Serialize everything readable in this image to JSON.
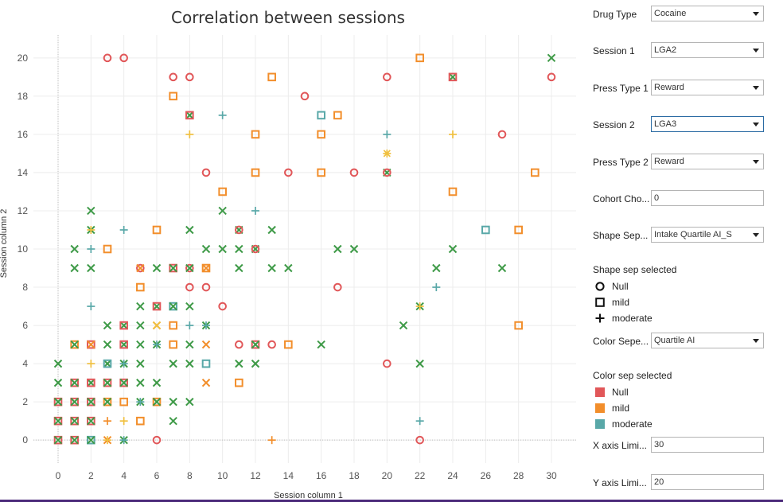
{
  "colors": {
    "Null": "#e15759",
    "mild": "#f28e2b",
    "moderate": "#59a8a8",
    "cross": "#3e9a47",
    "star": "#f0c040"
  },
  "controls": [
    {
      "label": "Drug Type",
      "value": "Cocaine",
      "dropdown": true
    },
    {
      "label": "Session 1",
      "value": "LGA2",
      "dropdown": true
    },
    {
      "label": "Press Type 1",
      "value": "Reward",
      "dropdown": true
    },
    {
      "label": "Session 2",
      "value": "LGA3",
      "dropdown": true,
      "active": true
    },
    {
      "label": "Press Type 2",
      "value": "Reward",
      "dropdown": true
    },
    {
      "label": "Cohort Cho...",
      "value": "0",
      "dropdown": false
    },
    {
      "label": "Shape Sep...",
      "value": "Intake Quartile AI_S",
      "dropdown": true
    }
  ],
  "shape_legend": {
    "title": "Shape sep selected",
    "items": [
      {
        "label": "Null",
        "icon": "circle-icon"
      },
      {
        "label": "mild",
        "icon": "square-icon"
      },
      {
        "label": "moderate",
        "icon": "plus-icon"
      }
    ]
  },
  "color_control": {
    "label": "Color Sepe...",
    "value": "Quartile AI"
  },
  "color_legend": {
    "title": "Color sep selected",
    "items": [
      "Null",
      "mild",
      "moderate"
    ]
  },
  "limits": [
    {
      "label": "X axis Limi...",
      "value": "30"
    },
    {
      "label": "Y axis Limi...",
      "value": "20"
    }
  ],
  "chart_data": {
    "type": "scatter",
    "title": "Correlation between sessions",
    "xlabel": "Session column 1",
    "ylabel": "Session column 2",
    "xlim": [
      -1.5,
      31.5
    ],
    "ylim": [
      -1.2,
      21.2
    ],
    "x_ticks": [
      0,
      2,
      4,
      6,
      8,
      10,
      12,
      14,
      16,
      18,
      20,
      22,
      24,
      26,
      28,
      30
    ],
    "y_ticks": [
      0,
      2,
      4,
      6,
      8,
      10,
      12,
      14,
      16,
      18,
      20
    ],
    "points": [
      {
        "x": 3,
        "y": 20,
        "s": "o",
        "c": "Null"
      },
      {
        "x": 4,
        "y": 20,
        "s": "o",
        "c": "Null"
      },
      {
        "x": 22,
        "y": 20,
        "s": "sq",
        "c": "mild"
      },
      {
        "x": 30,
        "y": 20,
        "s": "x",
        "c": "cross"
      },
      {
        "x": 7,
        "y": 19,
        "s": "o",
        "c": "Null"
      },
      {
        "x": 8,
        "y": 19,
        "s": "o",
        "c": "Null"
      },
      {
        "x": 13,
        "y": 19,
        "s": "sq",
        "c": "mild"
      },
      {
        "x": 20,
        "y": 19,
        "s": "o",
        "c": "Null"
      },
      {
        "x": 24,
        "y": 19,
        "s": "x",
        "c": "cross"
      },
      {
        "x": 24,
        "y": 19,
        "s": "sq",
        "c": "Null"
      },
      {
        "x": 30,
        "y": 19,
        "s": "o",
        "c": "Null"
      },
      {
        "x": 7,
        "y": 18,
        "s": "sq",
        "c": "mild"
      },
      {
        "x": 15,
        "y": 18,
        "s": "o",
        "c": "Null"
      },
      {
        "x": 8,
        "y": 17,
        "s": "x",
        "c": "cross"
      },
      {
        "x": 8,
        "y": 17,
        "s": "sq",
        "c": "Null"
      },
      {
        "x": 10,
        "y": 17,
        "s": "+",
        "c": "moderate"
      },
      {
        "x": 16,
        "y": 17,
        "s": "sq",
        "c": "moderate"
      },
      {
        "x": 17,
        "y": 17,
        "s": "sq",
        "c": "mild"
      },
      {
        "x": 8,
        "y": 16,
        "s": "+",
        "c": "star"
      },
      {
        "x": 12,
        "y": 16,
        "s": "sq",
        "c": "mild"
      },
      {
        "x": 16,
        "y": 16,
        "s": "sq",
        "c": "mild"
      },
      {
        "x": 20,
        "y": 16,
        "s": "+",
        "c": "moderate"
      },
      {
        "x": 24,
        "y": 16,
        "s": "+",
        "c": "star"
      },
      {
        "x": 27,
        "y": 16,
        "s": "o",
        "c": "Null"
      },
      {
        "x": 20,
        "y": 15,
        "s": "*",
        "c": "star"
      },
      {
        "x": 9,
        "y": 14,
        "s": "o",
        "c": "Null"
      },
      {
        "x": 12,
        "y": 14,
        "s": "sq",
        "c": "mild"
      },
      {
        "x": 14,
        "y": 14,
        "s": "o",
        "c": "Null"
      },
      {
        "x": 16,
        "y": 14,
        "s": "sq",
        "c": "mild"
      },
      {
        "x": 18,
        "y": 14,
        "s": "o",
        "c": "Null"
      },
      {
        "x": 20,
        "y": 14,
        "s": "x",
        "c": "cross"
      },
      {
        "x": 20,
        "y": 14,
        "s": "o",
        "c": "Null"
      },
      {
        "x": 29,
        "y": 14,
        "s": "sq",
        "c": "mild"
      },
      {
        "x": 10,
        "y": 13,
        "s": "sq",
        "c": "mild"
      },
      {
        "x": 24,
        "y": 13,
        "s": "sq",
        "c": "mild"
      },
      {
        "x": 2,
        "y": 12,
        "s": "x",
        "c": "cross"
      },
      {
        "x": 10,
        "y": 12,
        "s": "x",
        "c": "cross"
      },
      {
        "x": 12,
        "y": 12,
        "s": "+",
        "c": "moderate"
      },
      {
        "x": 2,
        "y": 11,
        "s": "x",
        "c": "cross"
      },
      {
        "x": 2,
        "y": 11,
        "s": "+",
        "c": "star"
      },
      {
        "x": 4,
        "y": 11,
        "s": "+",
        "c": "moderate"
      },
      {
        "x": 6,
        "y": 11,
        "s": "sq",
        "c": "mild"
      },
      {
        "x": 8,
        "y": 11,
        "s": "x",
        "c": "cross"
      },
      {
        "x": 11,
        "y": 11,
        "s": "x",
        "c": "cross"
      },
      {
        "x": 11,
        "y": 11,
        "s": "o",
        "c": "Null"
      },
      {
        "x": 13,
        "y": 11,
        "s": "x",
        "c": "cross"
      },
      {
        "x": 26,
        "y": 11,
        "s": "sq",
        "c": "moderate"
      },
      {
        "x": 28,
        "y": 11,
        "s": "sq",
        "c": "mild"
      },
      {
        "x": 1,
        "y": 10,
        "s": "x",
        "c": "cross"
      },
      {
        "x": 2,
        "y": 10,
        "s": "+",
        "c": "moderate"
      },
      {
        "x": 3,
        "y": 10,
        "s": "sq",
        "c": "mild"
      },
      {
        "x": 9,
        "y": 10,
        "s": "x",
        "c": "cross"
      },
      {
        "x": 10,
        "y": 10,
        "s": "x",
        "c": "cross"
      },
      {
        "x": 11,
        "y": 10,
        "s": "x",
        "c": "cross"
      },
      {
        "x": 12,
        "y": 10,
        "s": "x",
        "c": "cross"
      },
      {
        "x": 12,
        "y": 10,
        "s": "o",
        "c": "Null"
      },
      {
        "x": 17,
        "y": 10,
        "s": "x",
        "c": "cross"
      },
      {
        "x": 18,
        "y": 10,
        "s": "x",
        "c": "cross"
      },
      {
        "x": 24,
        "y": 10,
        "s": "x",
        "c": "cross"
      },
      {
        "x": 1,
        "y": 9,
        "s": "x",
        "c": "cross"
      },
      {
        "x": 2,
        "y": 9,
        "s": "x",
        "c": "cross"
      },
      {
        "x": 5,
        "y": 9,
        "s": "o",
        "c": "Null"
      },
      {
        "x": 5,
        "y": 9,
        "s": "x",
        "c": "mild"
      },
      {
        "x": 6,
        "y": 9,
        "s": "x",
        "c": "cross"
      },
      {
        "x": 7,
        "y": 9,
        "s": "sq",
        "c": "Null"
      },
      {
        "x": 7,
        "y": 9,
        "s": "x",
        "c": "cross"
      },
      {
        "x": 8,
        "y": 9,
        "s": "o",
        "c": "Null"
      },
      {
        "x": 8,
        "y": 9,
        "s": "x",
        "c": "cross"
      },
      {
        "x": 9,
        "y": 9,
        "s": "sq",
        "c": "mild"
      },
      {
        "x": 9,
        "y": 9,
        "s": "x",
        "c": "mild"
      },
      {
        "x": 11,
        "y": 9,
        "s": "x",
        "c": "cross"
      },
      {
        "x": 13,
        "y": 9,
        "s": "x",
        "c": "cross"
      },
      {
        "x": 14,
        "y": 9,
        "s": "x",
        "c": "cross"
      },
      {
        "x": 23,
        "y": 9,
        "s": "x",
        "c": "cross"
      },
      {
        "x": 27,
        "y": 9,
        "s": "x",
        "c": "cross"
      },
      {
        "x": 5,
        "y": 8,
        "s": "sq",
        "c": "mild"
      },
      {
        "x": 8,
        "y": 8,
        "s": "o",
        "c": "Null"
      },
      {
        "x": 9,
        "y": 8,
        "s": "o",
        "c": "Null"
      },
      {
        "x": 17,
        "y": 8,
        "s": "o",
        "c": "Null"
      },
      {
        "x": 23,
        "y": 8,
        "s": "+",
        "c": "moderate"
      },
      {
        "x": 2,
        "y": 7,
        "s": "+",
        "c": "moderate"
      },
      {
        "x": 5,
        "y": 7,
        "s": "x",
        "c": "cross"
      },
      {
        "x": 6,
        "y": 7,
        "s": "x",
        "c": "cross"
      },
      {
        "x": 6,
        "y": 7,
        "s": "sq",
        "c": "Null"
      },
      {
        "x": 7,
        "y": 7,
        "s": "sq",
        "c": "moderate"
      },
      {
        "x": 7,
        "y": 7,
        "s": "x",
        "c": "cross"
      },
      {
        "x": 8,
        "y": 7,
        "s": "x",
        "c": "cross"
      },
      {
        "x": 10,
        "y": 7,
        "s": "o",
        "c": "Null"
      },
      {
        "x": 22,
        "y": 7,
        "s": "x",
        "c": "cross"
      },
      {
        "x": 22,
        "y": 7,
        "s": "+",
        "c": "star"
      },
      {
        "x": 3,
        "y": 6,
        "s": "x",
        "c": "cross"
      },
      {
        "x": 4,
        "y": 6,
        "s": "x",
        "c": "cross"
      },
      {
        "x": 4,
        "y": 6,
        "s": "sq",
        "c": "Null"
      },
      {
        "x": 5,
        "y": 6,
        "s": "x",
        "c": "cross"
      },
      {
        "x": 6,
        "y": 6,
        "s": "x",
        "c": "mild"
      },
      {
        "x": 6,
        "y": 6,
        "s": "x",
        "c": "star"
      },
      {
        "x": 7,
        "y": 6,
        "s": "sq",
        "c": "mild"
      },
      {
        "x": 8,
        "y": 6,
        "s": "+",
        "c": "moderate"
      },
      {
        "x": 9,
        "y": 6,
        "s": "x",
        "c": "cross"
      },
      {
        "x": 9,
        "y": 6,
        "s": "+",
        "c": "moderate"
      },
      {
        "x": 21,
        "y": 6,
        "s": "x",
        "c": "cross"
      },
      {
        "x": 28,
        "y": 6,
        "s": "sq",
        "c": "mild"
      },
      {
        "x": 1,
        "y": 5,
        "s": "sq",
        "c": "mild"
      },
      {
        "x": 1,
        "y": 5,
        "s": "x",
        "c": "cross"
      },
      {
        "x": 2,
        "y": 5,
        "s": "sq",
        "c": "Null"
      },
      {
        "x": 2,
        "y": 5,
        "s": "x",
        "c": "mild"
      },
      {
        "x": 3,
        "y": 5,
        "s": "x",
        "c": "cross"
      },
      {
        "x": 4,
        "y": 5,
        "s": "x",
        "c": "cross"
      },
      {
        "x": 4,
        "y": 5,
        "s": "sq",
        "c": "Null"
      },
      {
        "x": 5,
        "y": 5,
        "s": "x",
        "c": "cross"
      },
      {
        "x": 6,
        "y": 5,
        "s": "x",
        "c": "cross"
      },
      {
        "x": 6,
        "y": 5,
        "s": "+",
        "c": "moderate"
      },
      {
        "x": 7,
        "y": 5,
        "s": "sq",
        "c": "mild"
      },
      {
        "x": 8,
        "y": 5,
        "s": "x",
        "c": "cross"
      },
      {
        "x": 9,
        "y": 5,
        "s": "x",
        "c": "mild"
      },
      {
        "x": 11,
        "y": 5,
        "s": "o",
        "c": "Null"
      },
      {
        "x": 12,
        "y": 5,
        "s": "sq",
        "c": "Null"
      },
      {
        "x": 12,
        "y": 5,
        "s": "x",
        "c": "cross"
      },
      {
        "x": 13,
        "y": 5,
        "s": "o",
        "c": "Null"
      },
      {
        "x": 14,
        "y": 5,
        "s": "sq",
        "c": "mild"
      },
      {
        "x": 16,
        "y": 5,
        "s": "x",
        "c": "cross"
      },
      {
        "x": 0,
        "y": 4,
        "s": "x",
        "c": "cross"
      },
      {
        "x": 2,
        "y": 4,
        "s": "+",
        "c": "star"
      },
      {
        "x": 3,
        "y": 4,
        "s": "x",
        "c": "cross"
      },
      {
        "x": 3,
        "y": 4,
        "s": "sq",
        "c": "moderate"
      },
      {
        "x": 4,
        "y": 4,
        "s": "x",
        "c": "cross"
      },
      {
        "x": 4,
        "y": 4,
        "s": "+",
        "c": "moderate"
      },
      {
        "x": 5,
        "y": 4,
        "s": "x",
        "c": "cross"
      },
      {
        "x": 7,
        "y": 4,
        "s": "x",
        "c": "cross"
      },
      {
        "x": 8,
        "y": 4,
        "s": "x",
        "c": "cross"
      },
      {
        "x": 9,
        "y": 4,
        "s": "sq",
        "c": "moderate"
      },
      {
        "x": 11,
        "y": 4,
        "s": "x",
        "c": "cross"
      },
      {
        "x": 12,
        "y": 4,
        "s": "x",
        "c": "cross"
      },
      {
        "x": 20,
        "y": 4,
        "s": "o",
        "c": "Null"
      },
      {
        "x": 22,
        "y": 4,
        "s": "x",
        "c": "cross"
      },
      {
        "x": 0,
        "y": 3,
        "s": "x",
        "c": "cross"
      },
      {
        "x": 1,
        "y": 3,
        "s": "sq",
        "c": "Null"
      },
      {
        "x": 1,
        "y": 3,
        "s": "x",
        "c": "cross"
      },
      {
        "x": 2,
        "y": 3,
        "s": "x",
        "c": "cross"
      },
      {
        "x": 2,
        "y": 3,
        "s": "sq",
        "c": "Null"
      },
      {
        "x": 3,
        "y": 3,
        "s": "sq",
        "c": "Null"
      },
      {
        "x": 3,
        "y": 3,
        "s": "x",
        "c": "cross"
      },
      {
        "x": 4,
        "y": 3,
        "s": "sq",
        "c": "Null"
      },
      {
        "x": 4,
        "y": 3,
        "s": "x",
        "c": "cross"
      },
      {
        "x": 5,
        "y": 3,
        "s": "x",
        "c": "cross"
      },
      {
        "x": 6,
        "y": 3,
        "s": "x",
        "c": "cross"
      },
      {
        "x": 9,
        "y": 3,
        "s": "x",
        "c": "mild"
      },
      {
        "x": 11,
        "y": 3,
        "s": "sq",
        "c": "mild"
      },
      {
        "x": 0,
        "y": 2,
        "s": "sq",
        "c": "Null"
      },
      {
        "x": 0,
        "y": 2,
        "s": "x",
        "c": "cross"
      },
      {
        "x": 1,
        "y": 2,
        "s": "sq",
        "c": "Null"
      },
      {
        "x": 1,
        "y": 2,
        "s": "x",
        "c": "cross"
      },
      {
        "x": 2,
        "y": 2,
        "s": "sq",
        "c": "Null"
      },
      {
        "x": 2,
        "y": 2,
        "s": "x",
        "c": "cross"
      },
      {
        "x": 3,
        "y": 2,
        "s": "sq",
        "c": "mild"
      },
      {
        "x": 3,
        "y": 2,
        "s": "x",
        "c": "cross"
      },
      {
        "x": 4,
        "y": 2,
        "s": "sq",
        "c": "mild"
      },
      {
        "x": 5,
        "y": 2,
        "s": "x",
        "c": "cross"
      },
      {
        "x": 5,
        "y": 2,
        "s": "+",
        "c": "moderate"
      },
      {
        "x": 6,
        "y": 2,
        "s": "sq",
        "c": "mild"
      },
      {
        "x": 6,
        "y": 2,
        "s": "x",
        "c": "cross"
      },
      {
        "x": 7,
        "y": 2,
        "s": "x",
        "c": "cross"
      },
      {
        "x": 8,
        "y": 2,
        "s": "x",
        "c": "cross"
      },
      {
        "x": 0,
        "y": 1,
        "s": "sq",
        "c": "Null"
      },
      {
        "x": 0,
        "y": 1,
        "s": "x",
        "c": "cross"
      },
      {
        "x": 1,
        "y": 1,
        "s": "sq",
        "c": "Null"
      },
      {
        "x": 1,
        "y": 1,
        "s": "x",
        "c": "cross"
      },
      {
        "x": 2,
        "y": 1,
        "s": "sq",
        "c": "Null"
      },
      {
        "x": 2,
        "y": 1,
        "s": "x",
        "c": "cross"
      },
      {
        "x": 3,
        "y": 1,
        "s": "+",
        "c": "mild"
      },
      {
        "x": 4,
        "y": 1,
        "s": "+",
        "c": "star"
      },
      {
        "x": 5,
        "y": 1,
        "s": "sq",
        "c": "mild"
      },
      {
        "x": 7,
        "y": 1,
        "s": "x",
        "c": "cross"
      },
      {
        "x": 22,
        "y": 1,
        "s": "+",
        "c": "moderate"
      },
      {
        "x": 0,
        "y": 0,
        "s": "sq",
        "c": "Null"
      },
      {
        "x": 0,
        "y": 0,
        "s": "x",
        "c": "cross"
      },
      {
        "x": 1,
        "y": 0,
        "s": "sq",
        "c": "Null"
      },
      {
        "x": 1,
        "y": 0,
        "s": "x",
        "c": "cross"
      },
      {
        "x": 2,
        "y": 0,
        "s": "sq",
        "c": "moderate"
      },
      {
        "x": 2,
        "y": 0,
        "s": "x",
        "c": "cross"
      },
      {
        "x": 3,
        "y": 0,
        "s": "x",
        "c": "mild"
      },
      {
        "x": 3,
        "y": 0,
        "s": "+",
        "c": "star"
      },
      {
        "x": 4,
        "y": 0,
        "s": "x",
        "c": "cross"
      },
      {
        "x": 4,
        "y": 0,
        "s": "+",
        "c": "moderate"
      },
      {
        "x": 6,
        "y": 0,
        "s": "o",
        "c": "Null"
      },
      {
        "x": 13,
        "y": 0,
        "s": "+",
        "c": "mild"
      },
      {
        "x": 22,
        "y": 0,
        "s": "o",
        "c": "Null"
      }
    ]
  }
}
